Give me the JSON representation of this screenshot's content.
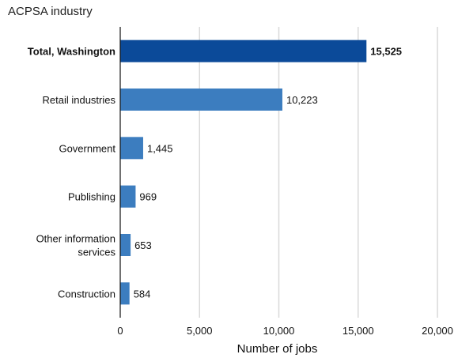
{
  "chart_data": {
    "type": "bar",
    "orientation": "horizontal",
    "title": "ACPSA industry",
    "xlabel": "Number of jobs",
    "ylabel": "",
    "xlim": [
      0,
      20000
    ],
    "ticks": [
      "0",
      "5,000",
      "10,000",
      "15,000",
      "20,000"
    ],
    "tick_values": [
      0,
      5000,
      10000,
      15000,
      20000
    ],
    "categories": [
      "Total, Washington",
      "Retail industries",
      "Government",
      "Publishing",
      "Other information services",
      "Construction"
    ],
    "category_lines": [
      [
        "Total, Washington"
      ],
      [
        "Retail industries"
      ],
      [
        "Government"
      ],
      [
        "Publishing"
      ],
      [
        "Other information",
        "services"
      ],
      [
        "Construction"
      ]
    ],
    "values": [
      15525,
      10223,
      1445,
      969,
      653,
      584
    ],
    "value_labels": [
      "15,525",
      "10,223",
      "1,445",
      "969",
      "653",
      "584"
    ],
    "highlight": [
      true,
      false,
      false,
      false,
      false,
      false
    ],
    "colors": {
      "highlight": "#0b4a99",
      "bar": "#3c7dbf"
    },
    "grid": true
  }
}
